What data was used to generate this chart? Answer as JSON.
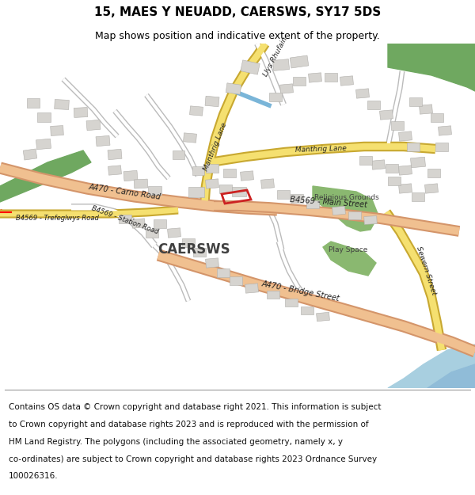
{
  "title": "15, MAES Y NEUADD, CAERSWS, SY17 5DS",
  "subtitle": "Map shows position and indicative extent of the property.",
  "footer_lines": [
    "Contains OS data © Crown copyright and database right 2021. This information is subject",
    "to Crown copyright and database rights 2023 and is reproduced with the permission of",
    "HM Land Registry. The polygons (including the associated geometry, namely x, y",
    "co-ordinates) are subject to Crown copyright and database rights 2023 Ordnance Survey",
    "100026316."
  ],
  "map_bg": "#ece9e4",
  "road_orange_outer": "#d4956a",
  "road_orange_inner": "#f0c090",
  "road_yellow_outer": "#c8a830",
  "road_yellow_inner": "#f5e070",
  "road_minor_outer": "#bbbbbb",
  "road_minor_inner": "#ffffff",
  "building_fill": "#d6d4d0",
  "building_edge": "#b0aeaa",
  "green1": "#6fa860",
  "green2": "#8ab870",
  "water": "#a8cfe0",
  "water2": "#90bcd8",
  "plot_red": "#cc2222",
  "text_color": "#333333",
  "title_fontsize": 11,
  "subtitle_fontsize": 9,
  "footer_fontsize": 7.5
}
